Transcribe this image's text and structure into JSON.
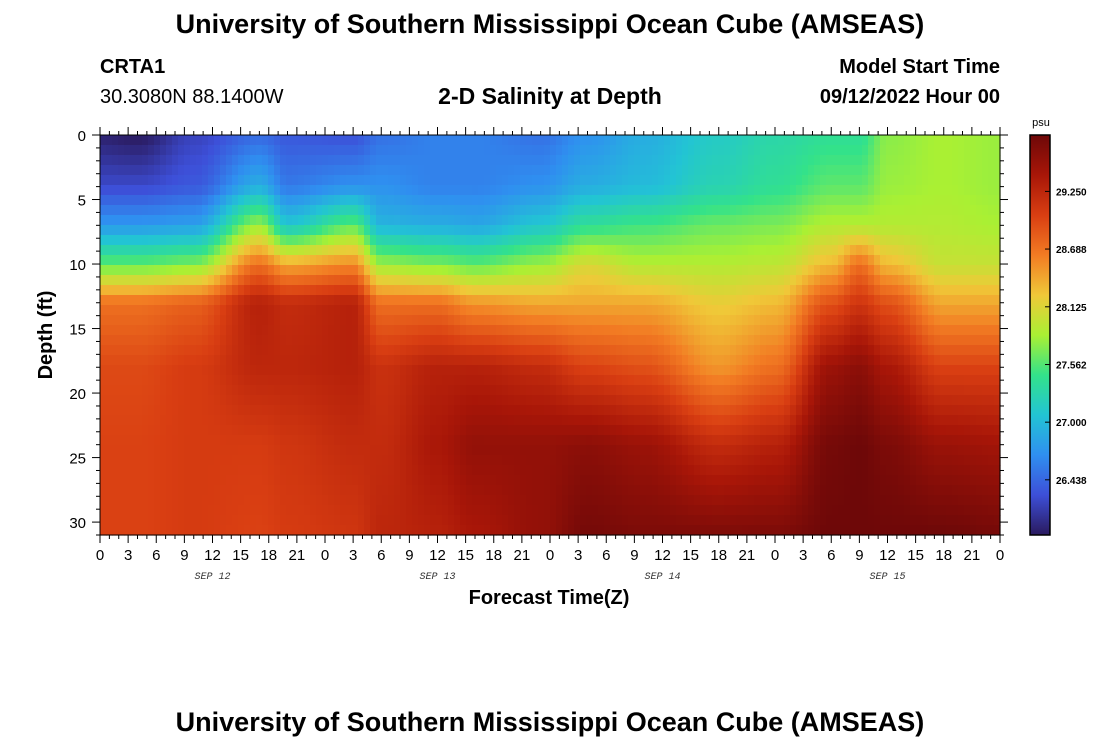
{
  "header": {
    "title_top": "University of Southern Mississippi Ocean Cube (AMSEAS)",
    "title_bottom": "University of Southern Mississippi Ocean Cube (AMSEAS)",
    "station": "CRTA1",
    "coords": "30.3080N  88.1400W",
    "chart_title": "2-D Salinity at Depth",
    "model_start_label": "Model Start Time",
    "model_start_value": "09/12/2022 Hour 00"
  },
  "chart_data": {
    "type": "heatmap",
    "title": "2-D Salinity at Depth",
    "xlabel": "Forecast Time(Z)",
    "ylabel": "Depth (ft)",
    "colorbar_unit": "psu",
    "x_hours": [
      0,
      96
    ],
    "x_tick_labels": [
      "0",
      "3",
      "6",
      "9",
      "12",
      "15",
      "18",
      "21",
      "0",
      "3",
      "6",
      "9",
      "12",
      "15",
      "18",
      "21",
      "0",
      "3",
      "6",
      "9",
      "12",
      "15",
      "18",
      "21",
      "0",
      "3",
      "6",
      "9",
      "12",
      "15",
      "18",
      "21",
      "0"
    ],
    "x_date_labels": [
      {
        "label": "SEP 12",
        "hour": 12
      },
      {
        "label": "SEP 13",
        "hour": 36
      },
      {
        "label": "SEP 14",
        "hour": 60
      },
      {
        "label": "SEP 15",
        "hour": 84
      }
    ],
    "y_ticks": [
      0,
      5,
      10,
      15,
      20,
      25,
      30
    ],
    "ylim": [
      0,
      31
    ],
    "colorbar_ticks": [
      "26.438",
      "27.000",
      "27.562",
      "28.125",
      "28.688",
      "29.250"
    ],
    "colorbar_range": [
      25.9,
      29.8
    ],
    "colorscale": [
      "#2a1a5e",
      "#3d4fd8",
      "#2f8ff0",
      "#22c4d4",
      "#33e28a",
      "#aaf033",
      "#f0c838",
      "#f27b23",
      "#d93e12",
      "#a81608",
      "#6e0808"
    ],
    "grid": false,
    "legend": "colorbar-right",
    "profiles": [
      {
        "hour": 0,
        "z": [
          25.95,
          26.25,
          26.75,
          27.6,
          28.7,
          28.95,
          29.0,
          29.0
        ]
      },
      {
        "hour": 4,
        "z": [
          25.9,
          26.25,
          26.75,
          27.6,
          28.7,
          28.95,
          29.0,
          29.0
        ]
      },
      {
        "hour": 10,
        "z": [
          26.2,
          26.35,
          26.8,
          27.7,
          28.8,
          29.05,
          29.05,
          29.05
        ]
      },
      {
        "hour": 17,
        "z": [
          26.45,
          26.9,
          27.8,
          28.7,
          29.3,
          29.25,
          29.05,
          29.0
        ]
      },
      {
        "hour": 20,
        "z": [
          26.35,
          26.55,
          27.1,
          28.4,
          29.2,
          29.25,
          29.1,
          29.05
        ]
      },
      {
        "hour": 27,
        "z": [
          26.3,
          26.7,
          27.6,
          28.55,
          29.3,
          29.3,
          29.2,
          29.1
        ]
      },
      {
        "hour": 30,
        "z": [
          26.5,
          26.7,
          26.95,
          27.8,
          28.7,
          29.15,
          29.2,
          29.25
        ]
      },
      {
        "hour": 36,
        "z": [
          26.6,
          26.6,
          26.9,
          27.7,
          28.7,
          29.3,
          29.4,
          29.3
        ]
      },
      {
        "hour": 40,
        "z": [
          26.6,
          26.6,
          26.85,
          27.6,
          28.5,
          29.3,
          29.55,
          29.4
        ]
      },
      {
        "hour": 47,
        "z": [
          26.5,
          26.7,
          27.1,
          27.8,
          28.4,
          29.2,
          29.55,
          29.55
        ]
      },
      {
        "hour": 52,
        "z": [
          26.7,
          26.9,
          27.4,
          28.1,
          28.4,
          29.0,
          29.6,
          29.75
        ]
      },
      {
        "hour": 58,
        "z": [
          26.9,
          27.0,
          27.5,
          27.9,
          28.4,
          28.9,
          29.5,
          29.7
        ]
      },
      {
        "hour": 66,
        "z": [
          27.15,
          27.25,
          27.65,
          27.9,
          28.2,
          28.5,
          29.2,
          29.7
        ]
      },
      {
        "hour": 72,
        "z": [
          27.3,
          27.4,
          27.7,
          27.95,
          28.3,
          28.7,
          29.3,
          29.7
        ]
      },
      {
        "hour": 78,
        "z": [
          27.4,
          27.6,
          27.9,
          28.3,
          28.9,
          29.5,
          29.75,
          29.8
        ]
      },
      {
        "hour": 81,
        "z": [
          27.4,
          27.6,
          27.9,
          28.7,
          29.1,
          29.6,
          29.8,
          29.8
        ]
      },
      {
        "hour": 84,
        "z": [
          27.75,
          27.8,
          27.9,
          28.3,
          28.9,
          29.4,
          29.7,
          29.8
        ]
      },
      {
        "hour": 90,
        "z": [
          27.85,
          27.85,
          27.9,
          28.0,
          28.4,
          29.0,
          29.5,
          29.8
        ]
      },
      {
        "hour": 96,
        "z": [
          27.8,
          27.8,
          27.85,
          28.0,
          28.4,
          29.0,
          29.45,
          29.75
        ]
      }
    ],
    "profile_depths": [
      0,
      4,
      7,
      10,
      13,
      18,
      24,
      31
    ]
  }
}
